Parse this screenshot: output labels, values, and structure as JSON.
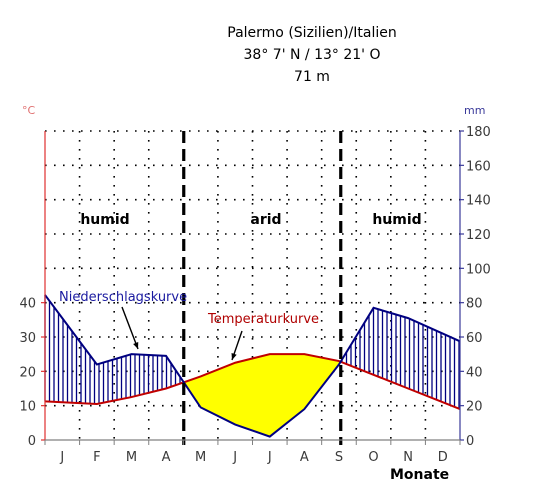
{
  "header": {
    "line1": "Palermo (Sizilien)/Italien",
    "line2": "38° 7' N / 13° 21' O",
    "line3": "71 m"
  },
  "chart_data": {
    "type": "line",
    "subtype": "climate diagram",
    "categories": [
      "J",
      "F",
      "M",
      "A",
      "M",
      "J",
      "J",
      "A",
      "S",
      "O",
      "N",
      "D"
    ],
    "xlabel": "Monate",
    "left_axis": {
      "unit": "°C",
      "ticks": [
        0,
        10,
        20,
        30,
        40
      ],
      "ylim": [
        0,
        90
      ]
    },
    "right_axis": {
      "unit": "mm",
      "ticks": [
        0,
        20,
        40,
        60,
        80,
        100,
        120,
        140,
        160,
        180
      ],
      "ylim": [
        0,
        180
      ]
    },
    "grid": true,
    "series": [
      {
        "name": "Temperaturkurve",
        "axis": "left",
        "unit": "°C",
        "values": [
          11,
          10.5,
          12.5,
          15,
          18.5,
          22.5,
          25,
          25,
          23,
          19,
          15,
          11
        ],
        "color": "#c00000"
      },
      {
        "name": "Niederschlagskurve",
        "axis": "right",
        "unit": "mm",
        "values": [
          71,
          44,
          50,
          49,
          19,
          9,
          2,
          18,
          44,
          77,
          71,
          62
        ],
        "color": "#000080"
      }
    ],
    "zones": [
      {
        "label": "humid"
      },
      {
        "label": "arid"
      },
      {
        "label": "humid"
      }
    ],
    "colors": {
      "humid_hatch": "#000080",
      "arid_fill": "#ffff00",
      "left_axis": "#e03030",
      "right_axis": "#3a3a9a",
      "grid": "#000000"
    }
  }
}
